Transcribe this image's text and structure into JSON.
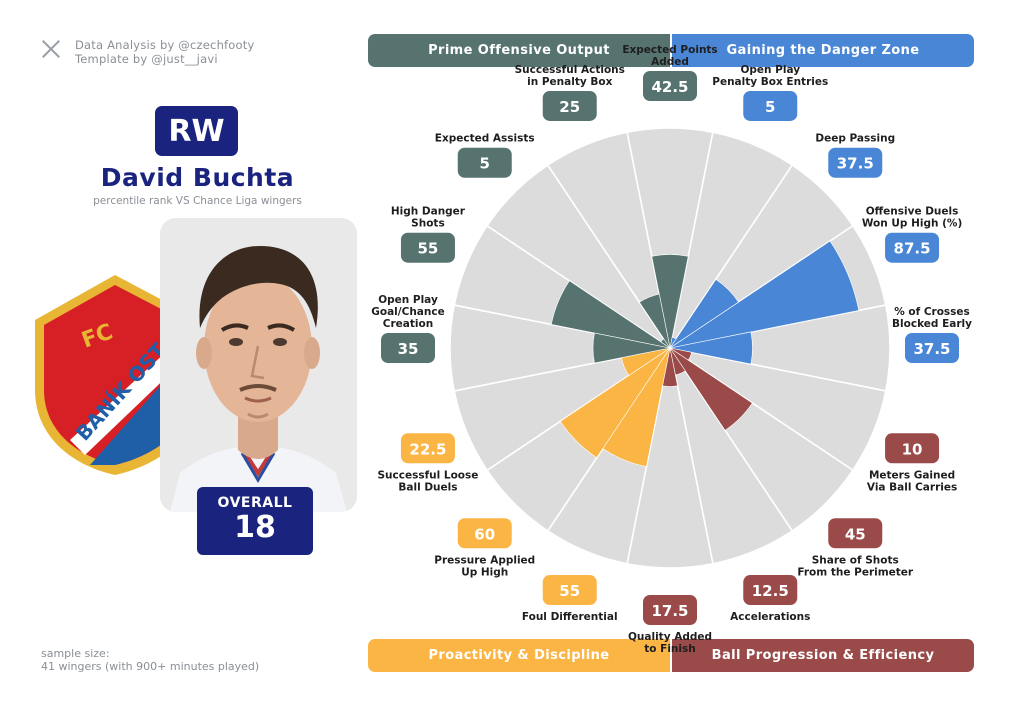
{
  "credits": {
    "line1": "Data Analysis by @czechfooty",
    "line2": "Template by @just__javi"
  },
  "player": {
    "position": "RW",
    "name": "David Buchta",
    "subtitle": "percentile rank VS Chance Liga wingers",
    "overall_label": "OVERALL",
    "overall_value": "18",
    "club_badge_lettering": [
      "FC",
      "BANÍK OSTRAVA"
    ]
  },
  "sample": {
    "line1": "sample size:",
    "line2": "41 wingers (with 900+ minutes played)"
  },
  "categories": {
    "prime": "Prime Offensive Output",
    "danger": "Gaining the Danger Zone",
    "proactivity": "Proactivity & Discipline",
    "progression": "Ball Progression & Efficiency"
  },
  "colors": {
    "navy": "#1a237e",
    "prime": "#56736f",
    "danger": "#4a86d6",
    "proactivity": "#fbb545",
    "progression": "#9b4a4a",
    "wedge_bg": "#dcdcdc",
    "club_red": "#d71f26",
    "club_blue": "#1f5fa8",
    "club_gold": "#e8b634"
  },
  "chart_data": {
    "type": "radar-bar",
    "scale_max": 100,
    "metrics": [
      {
        "label": [
          "Expected Points",
          "Added"
        ],
        "value": 42.5,
        "group": "prime"
      },
      {
        "label": [
          "Open Play",
          "Penalty Box Entries"
        ],
        "value": 5,
        "group": "danger"
      },
      {
        "label": [
          "Deep Passing"
        ],
        "value": 37.5,
        "group": "danger"
      },
      {
        "label": [
          "Offensive Duels",
          "Won Up High (%)"
        ],
        "value": 87.5,
        "group": "danger"
      },
      {
        "label": [
          "% of Crosses",
          "Blocked Early"
        ],
        "value": 37.5,
        "group": "danger"
      },
      {
        "label": [
          "Meters Gained",
          "Via Ball Carries"
        ],
        "value": 10,
        "group": "progression"
      },
      {
        "label": [
          "Share of Shots",
          "From the Perimeter"
        ],
        "value": 45,
        "group": "progression"
      },
      {
        "label": [
          "Accelerations"
        ],
        "value": 12.5,
        "group": "progression"
      },
      {
        "label": [
          "Quality Added",
          "to Finish"
        ],
        "value": 17.5,
        "group": "progression"
      },
      {
        "label": [
          "Foul Differential"
        ],
        "value": 55,
        "group": "proactivity"
      },
      {
        "label": [
          "Pressure Applied",
          "Up High"
        ],
        "value": 60,
        "group": "proactivity"
      },
      {
        "label": [
          "Successful Loose",
          "Ball Duels"
        ],
        "value": 22.5,
        "group": "proactivity"
      },
      {
        "label": [
          "Open Play",
          "Goal/Chance",
          "Creation"
        ],
        "value": 35,
        "group": "prime"
      },
      {
        "label": [
          "High Danger",
          "Shots"
        ],
        "value": 55,
        "group": "prime"
      },
      {
        "label": [
          "Expected Assists"
        ],
        "value": 5,
        "group": "prime"
      },
      {
        "label": [
          "Successful Actions",
          "in Penalty Box"
        ],
        "value": 25,
        "group": "prime"
      }
    ]
  }
}
